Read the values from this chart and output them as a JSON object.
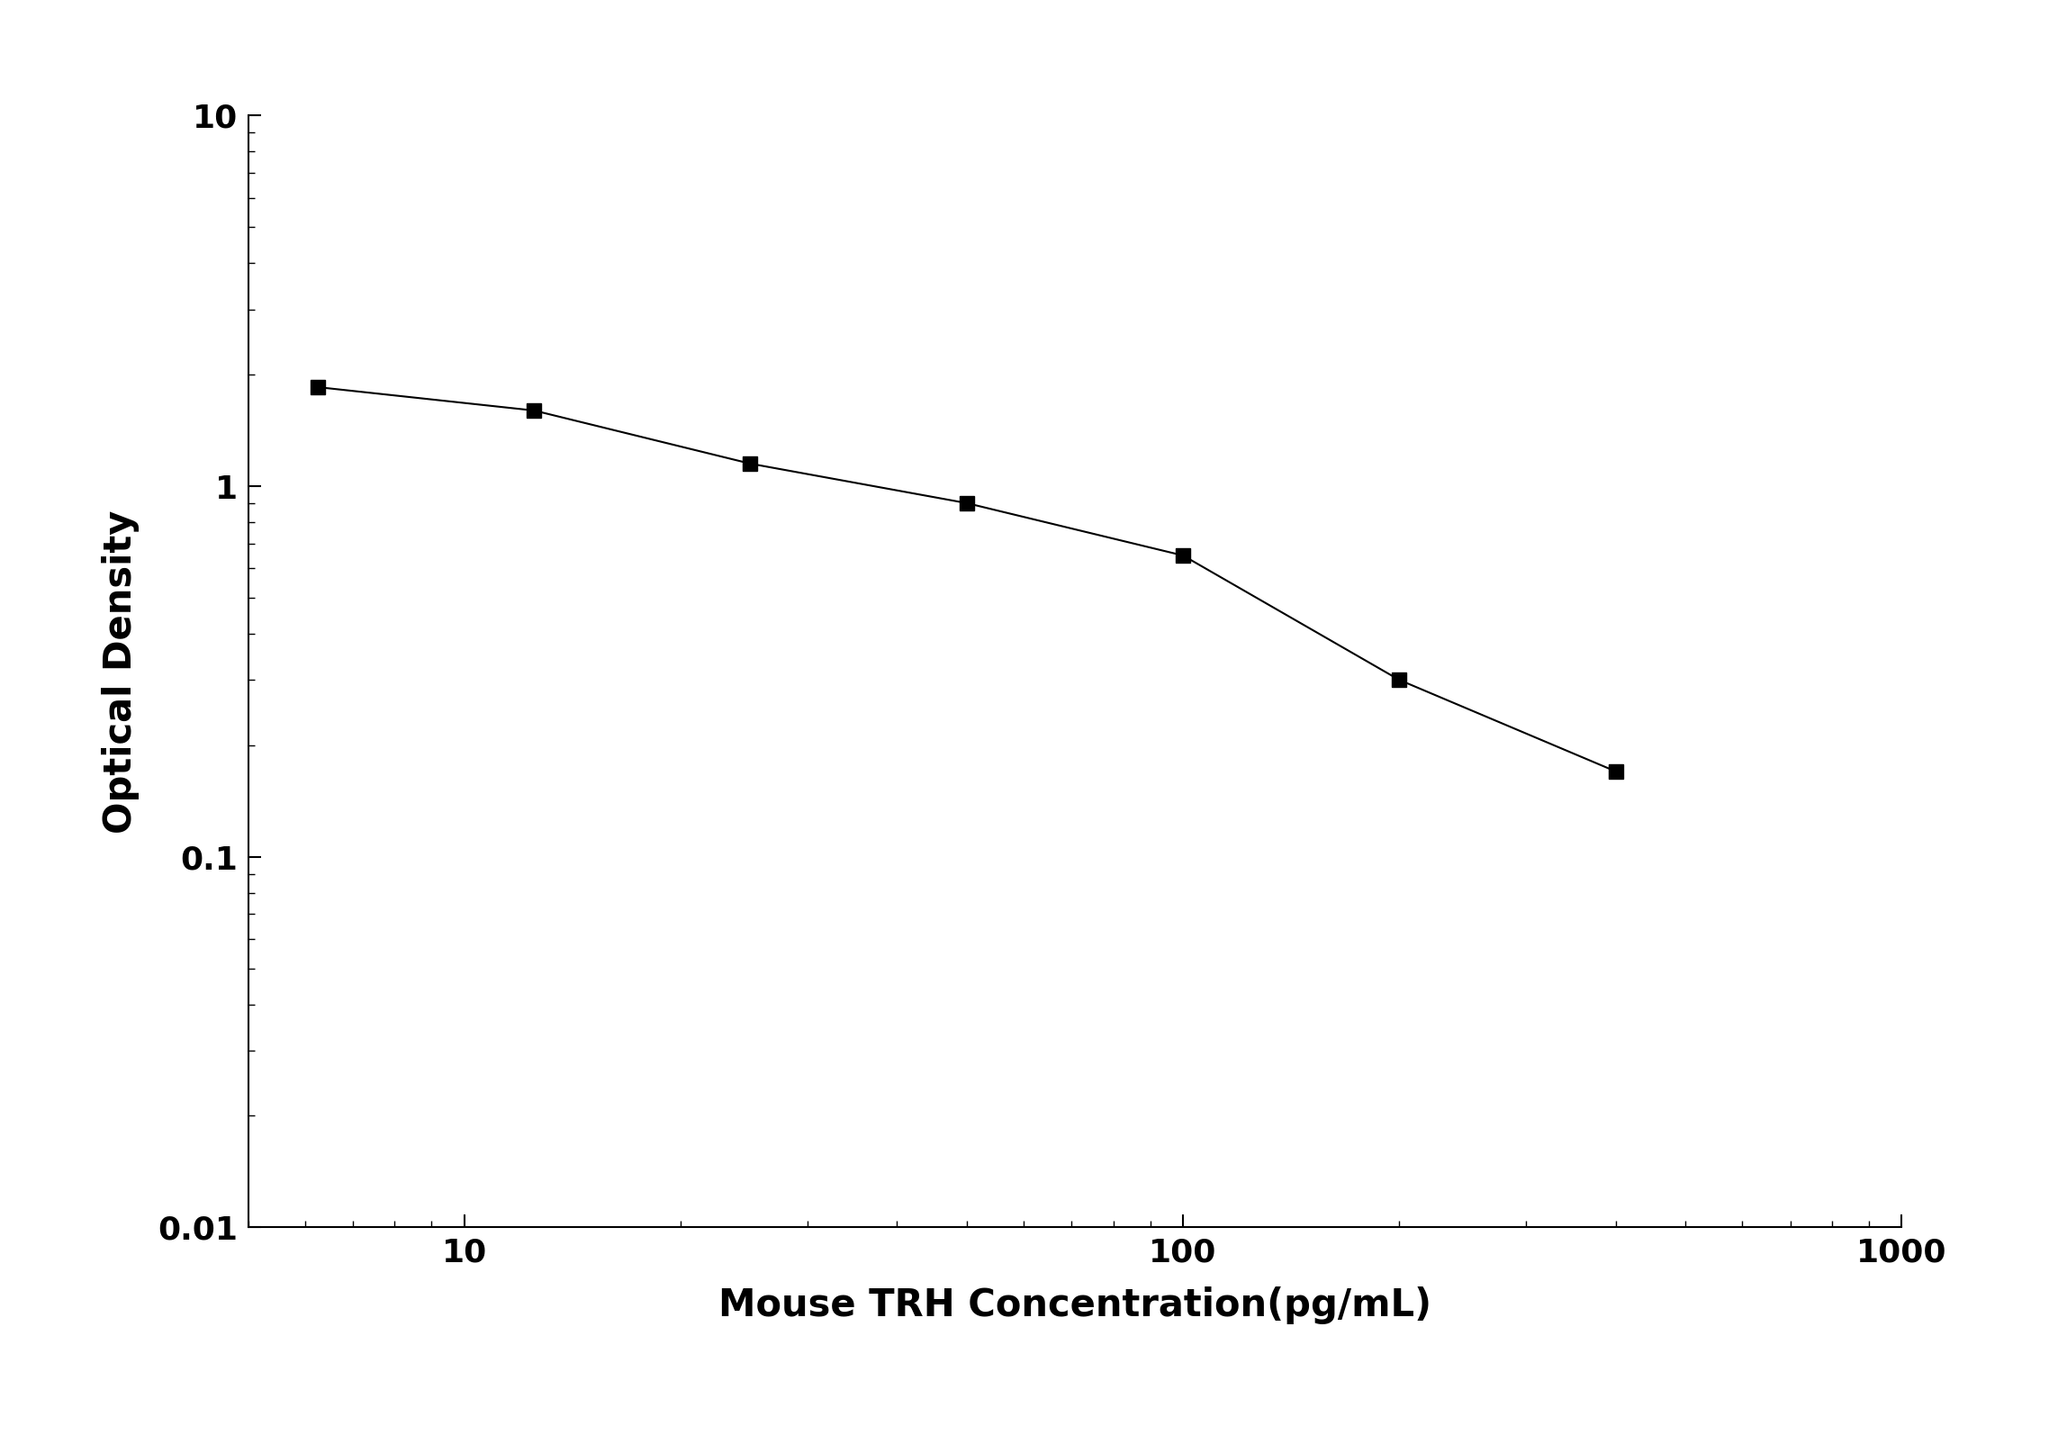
{
  "x_values": [
    6.25,
    12.5,
    25,
    50,
    100,
    200,
    400
  ],
  "y_values": [
    1.85,
    1.6,
    1.15,
    0.9,
    0.65,
    0.3,
    0.17
  ],
  "xlabel": "Mouse TRH Concentration(pg/mL)",
  "ylabel": "Optical Density",
  "xlim": [
    5,
    1000
  ],
  "ylim": [
    0.01,
    10
  ],
  "line_color": "#000000",
  "marker": "s",
  "marker_color": "#000000",
  "marker_size": 11,
  "line_width": 1.5,
  "background_color": "#ffffff",
  "xlabel_fontsize": 30,
  "ylabel_fontsize": 30,
  "tick_fontsize": 26,
  "title": ""
}
